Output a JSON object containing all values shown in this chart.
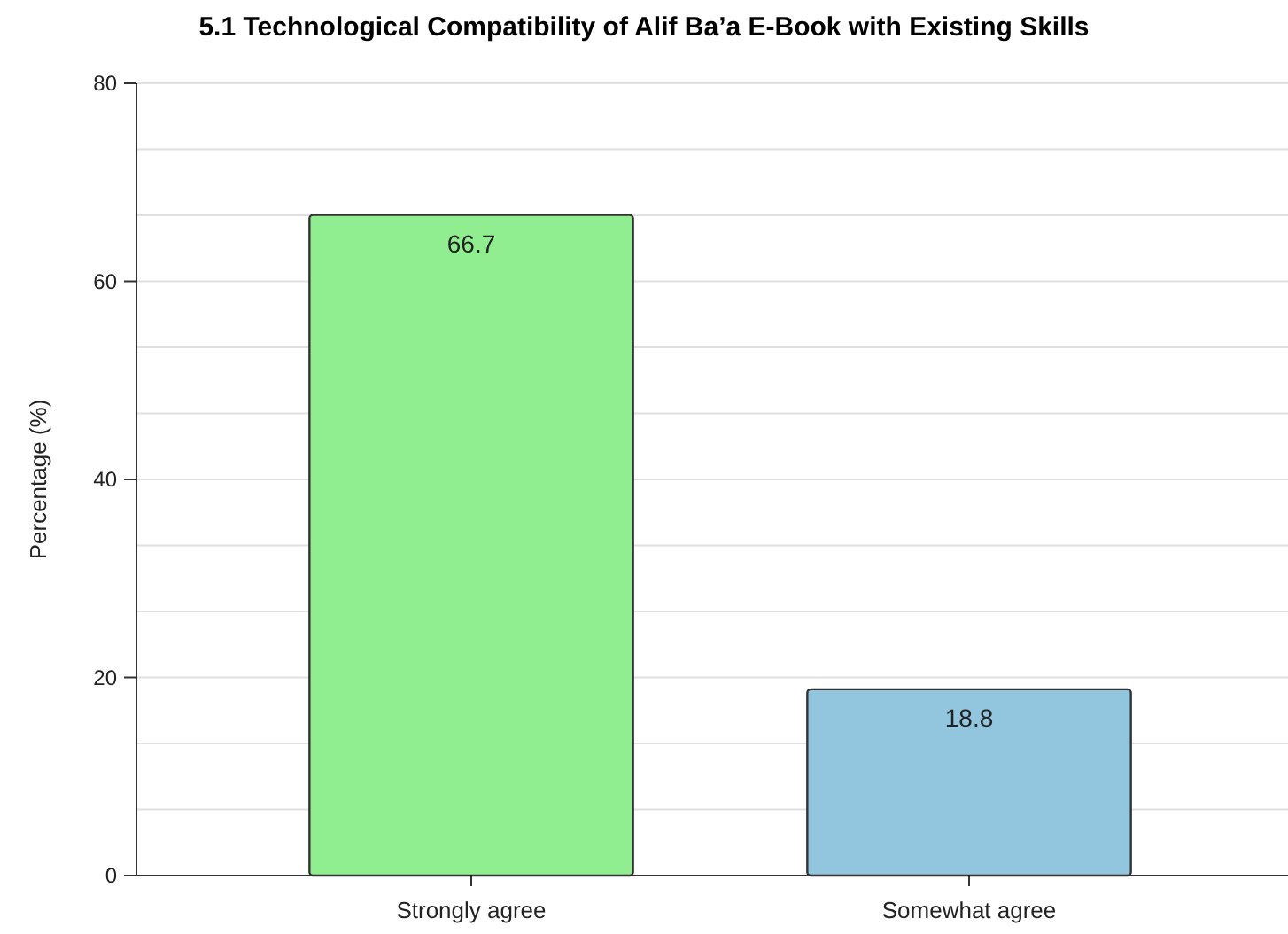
{
  "chart_data": {
    "type": "bar",
    "title": "5.1 Technological Compatibility of Alif Ba’a E-Book with Existing Skills",
    "ylabel": "Percentage (%)",
    "categories": [
      "Strongly agree",
      "Somewhat agree"
    ],
    "values": [
      66.7,
      18.8
    ],
    "colors": [
      "#90ee90",
      "#92c5de"
    ],
    "data_labels": true,
    "ylim": [
      0,
      80
    ],
    "yticks": [
      0,
      {
        "value": 6.67,
        "label": null
      },
      {
        "value": 13.33,
        "label": null
      },
      20,
      {
        "value": 26.67,
        "label": null
      },
      {
        "value": 33.33,
        "label": null
      },
      40,
      {
        "value": 46.67,
        "label": null
      },
      {
        "value": 53.33,
        "label": null
      },
      60,
      {
        "value": 66.67,
        "label": null
      },
      {
        "value": 73.33,
        "label": null
      },
      80
    ],
    "grid": "y"
  }
}
